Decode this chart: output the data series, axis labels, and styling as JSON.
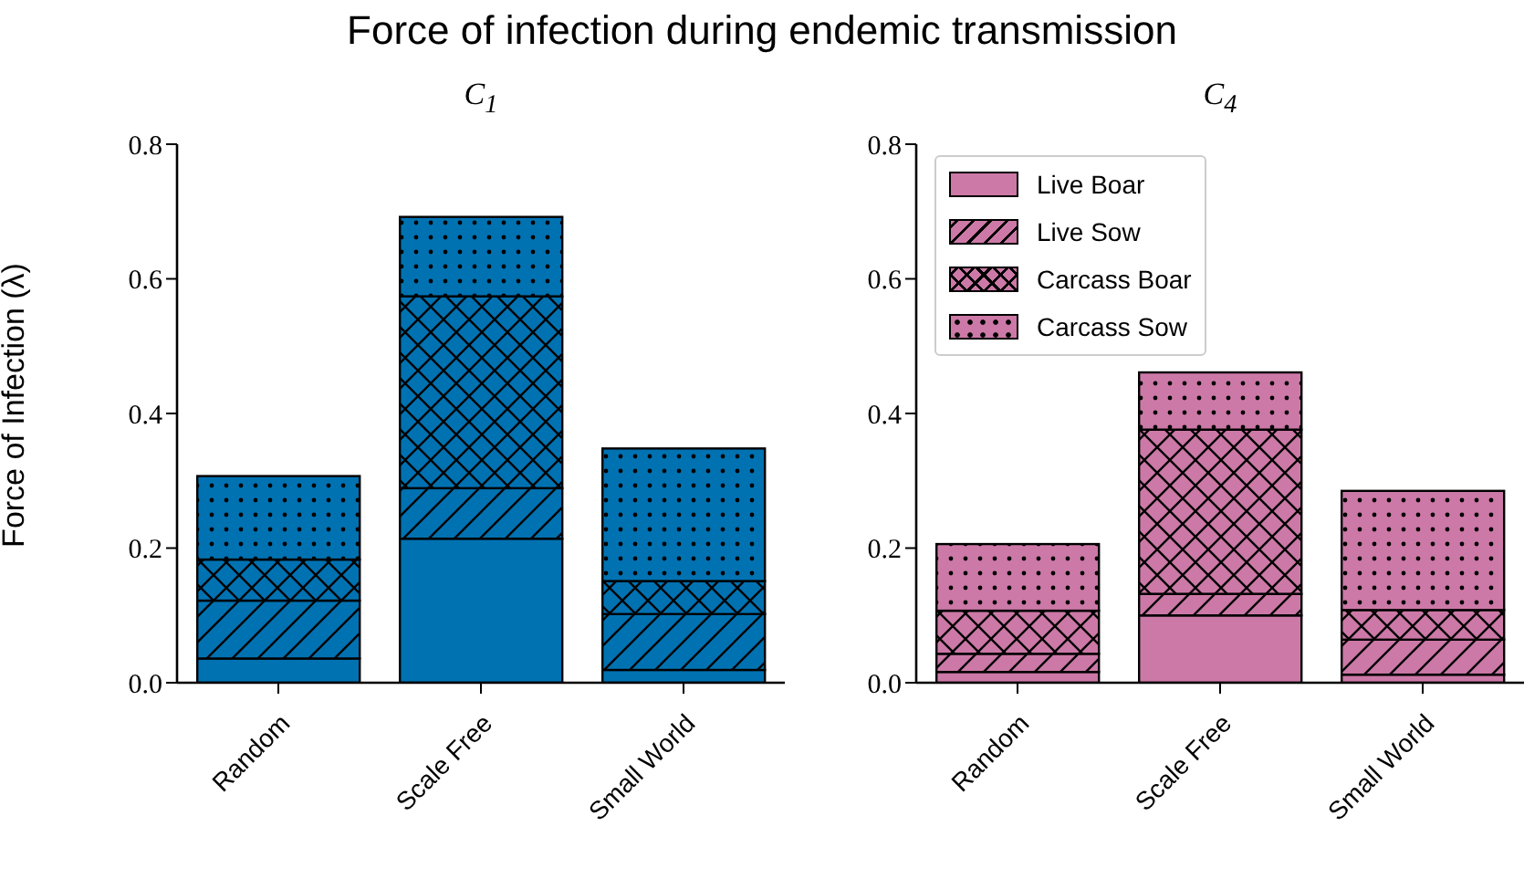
{
  "chart_data": [
    {
      "type": "bar",
      "title": "Force of infection during endemic transmission",
      "subtitle": "C$_{1}$",
      "ylabel": "Force of Infection (λ)",
      "categories": [
        "Random",
        "Scale Free",
        "Small World"
      ],
      "stacked": true,
      "ylim": [
        0,
        0.8
      ],
      "yticks": [
        {
          "value": 0,
          "label": "0.0"
        },
        {
          "value": 0.2,
          "label": "0.2"
        },
        {
          "value": 0.4,
          "label": "0.4"
        },
        {
          "value": 0.6,
          "label": "0.6"
        },
        {
          "value": 0.8,
          "label": "0.8"
        }
      ],
      "grid": false,
      "legend": false,
      "series": [
        {
          "color": "#0072b2",
          "values": [
            0.036,
            0.214,
            0.019
          ]
        },
        {
          "color": "#0072b2",
          "values": [
            0.086,
            0.075,
            0.083
          ]
        },
        {
          "color": "#0072b2",
          "values": [
            0.061,
            0.285,
            0.049
          ]
        },
        {
          "color": "#0072b2",
          "values": [
            0.124,
            0.118,
            0.197
          ]
        }
      ]
    },
    {
      "type": "bar",
      "subtitle": "C$_{4}$",
      "categories": [
        "Random",
        "Scale Free",
        "Small World"
      ],
      "stacked": true,
      "ylim": [
        0,
        0.8
      ],
      "yticks": [
        {
          "value": 0,
          "label": "0.0"
        },
        {
          "value": 0.2,
          "label": "0.2"
        },
        {
          "value": 0.4,
          "label": "0.4"
        },
        {
          "value": 0.6,
          "label": "0.6"
        },
        {
          "value": 0.8,
          "label": "0.8"
        }
      ],
      "grid": false,
      "legend": "top left",
      "series": [
        {
          "name": "Live Boar",
          "color": "#cc79a7",
          "values": [
            0.016,
            0.1,
            0.012
          ]
        },
        {
          "name": "Live Sow",
          "color": "#cc79a7",
          "values": [
            0.027,
            0.032,
            0.052
          ]
        },
        {
          "name": "Carcass Boar",
          "color": "#cc79a7",
          "values": [
            0.064,
            0.244,
            0.044
          ]
        },
        {
          "name": "Carcass Sow",
          "color": "#cc79a7",
          "values": [
            0.099,
            0.085,
            0.177
          ]
        }
      ]
    }
  ]
}
